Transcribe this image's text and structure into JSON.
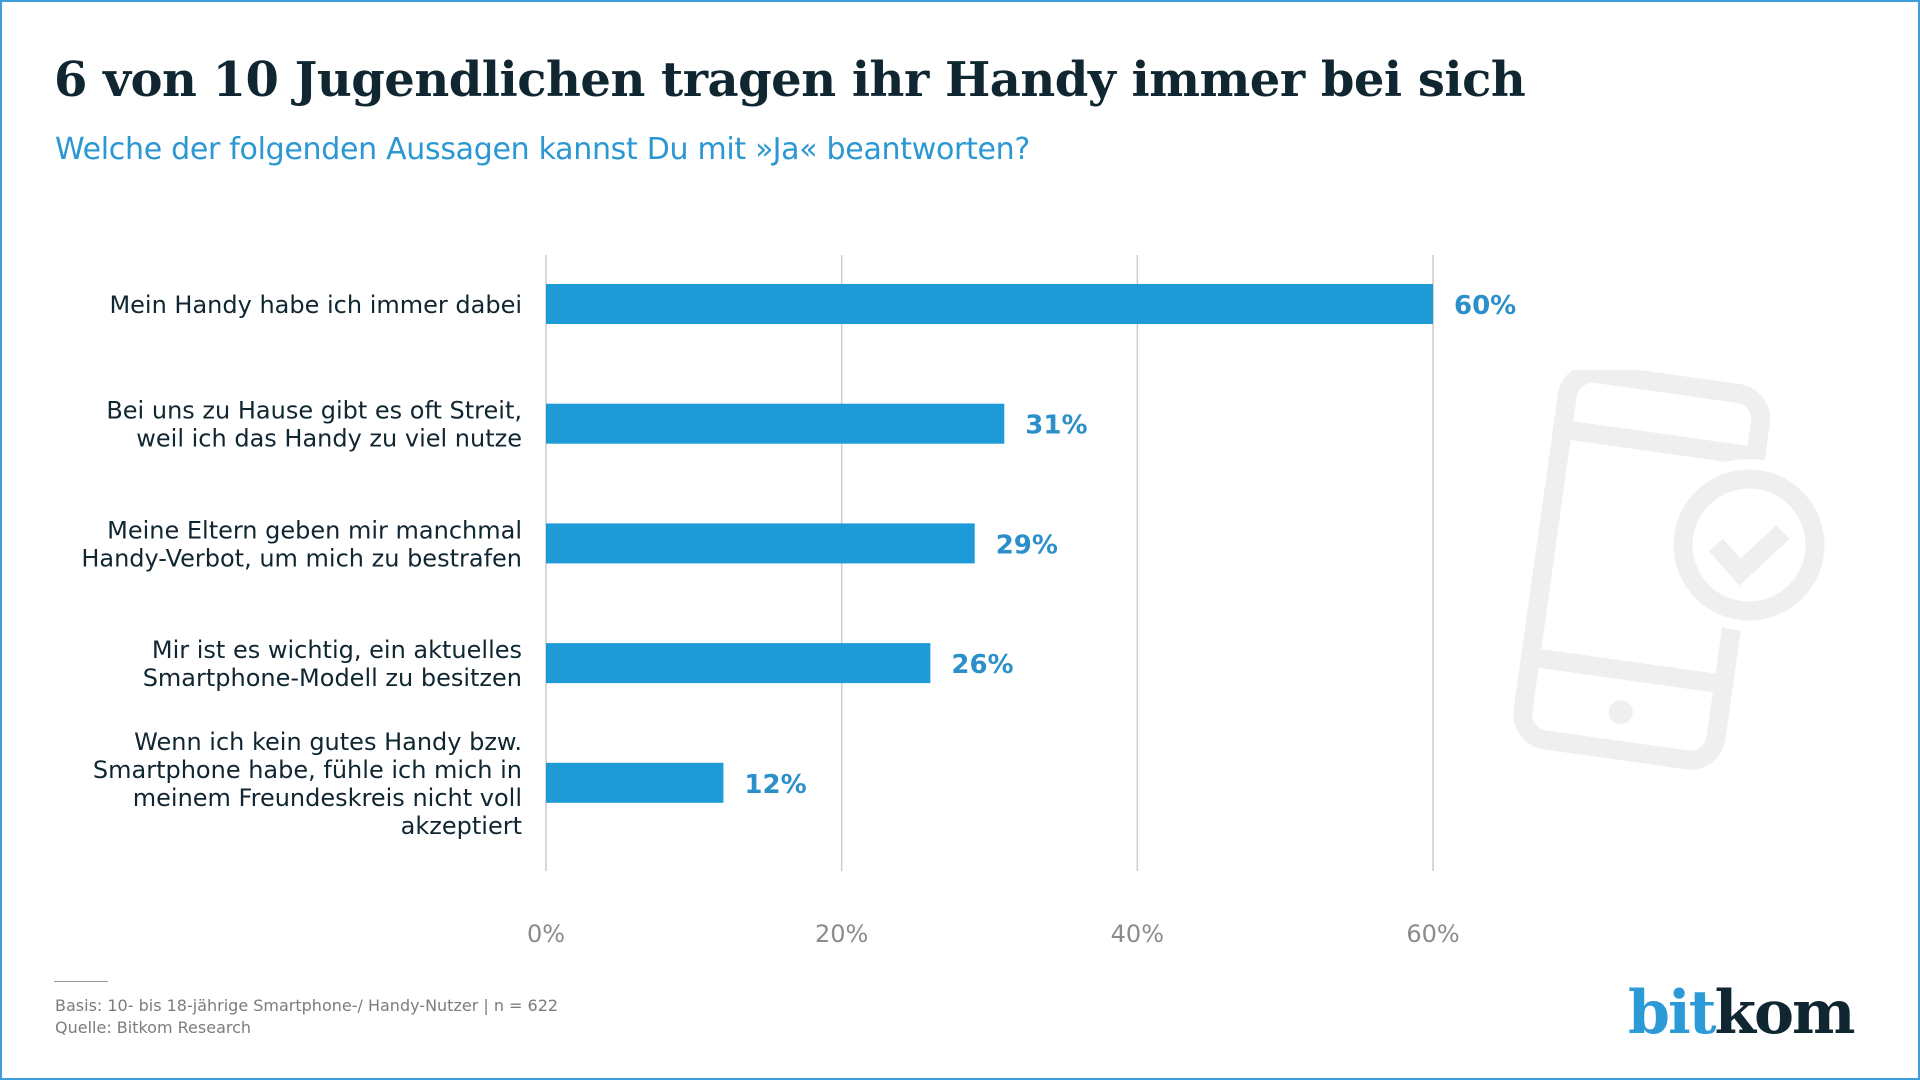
{
  "title": "6 von 10 Jugendlichen tragen ihr Handy immer bei sich",
  "subtitle": "Welche der folgenden Aussagen kannst Du mit »Ja« beantworten?",
  "colors": {
    "bar": "#1e9bd7",
    "value_label": "#2b8fc9",
    "title": "#102631",
    "subtitle": "#2b97d3",
    "grid": "#cccccc",
    "icon": "#efefef",
    "frame": "#3aa0d6"
  },
  "chart_data": {
    "type": "bar",
    "orientation": "horizontal",
    "title": "6 von 10 Jugendlichen tragen ihr Handy immer bei sich",
    "subtitle": "Welche der folgenden Aussagen kannst Du mit »Ja« beantworten?",
    "xlabel": "",
    "ylabel": "",
    "categories": [
      [
        "Mein Handy habe ich immer dabei"
      ],
      [
        "Bei uns zu Hause gibt es oft Streit,",
        "weil ich das Handy zu viel nutze"
      ],
      [
        "Meine Eltern geben mir manchmal",
        "Handy-Verbot, um mich zu bestrafen"
      ],
      [
        "Mir ist es wichtig, ein aktuelles",
        "Smartphone-Modell zu besitzen"
      ],
      [
        "Wenn ich kein gutes Handy bzw.",
        "Smartphone habe, fühle ich mich in",
        "meinem Freundeskreis nicht voll",
        "akzeptiert"
      ]
    ],
    "values": [
      60,
      31,
      29,
      26,
      12
    ],
    "value_labels": [
      "60%",
      "31%",
      "29%",
      "26%",
      "12%"
    ],
    "xlim": [
      0,
      60
    ],
    "xticks": [
      0,
      20,
      40,
      60
    ],
    "xtick_labels": [
      "0%",
      "20%",
      "40%",
      "60%"
    ],
    "grid": true,
    "legend": "none"
  },
  "footer": {
    "basis": "Basis: 10- bis 18-jährige Smartphone-/ Handy-Nutzer | n = 622",
    "source": "Quelle: Bitkom Research"
  },
  "logo": {
    "part1": "bit",
    "part2": "kom"
  }
}
